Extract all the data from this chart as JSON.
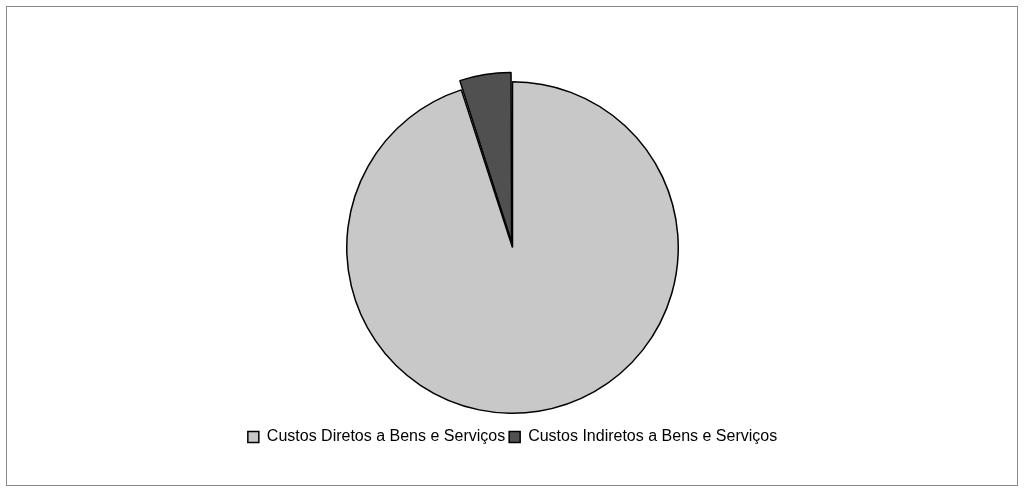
{
  "chart_data": {
    "type": "pie",
    "categories": [
      "Custos Diretos a Bens e Serviços",
      "Custos Indiretos a Bens e Serviços"
    ],
    "values": [
      95,
      5
    ],
    "colors": [
      "#c8c8c8",
      "#505050"
    ],
    "legend": "bottom"
  }
}
